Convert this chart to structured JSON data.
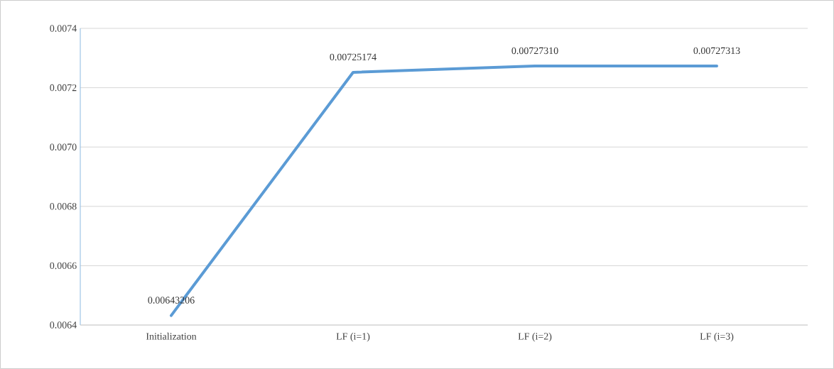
{
  "chart_data": {
    "type": "line",
    "categories": [
      "Initialization",
      "LF (i=1)",
      "LF (i=2)",
      "LF (i=3)"
    ],
    "values": [
      0.00643206,
      0.00725174,
      0.0072731,
      0.00727313
    ],
    "value_labels": [
      "0.00643206",
      "0.00725174",
      "0.00727310",
      "0.00727313"
    ],
    "color": "#5b9bd5",
    "ylim": [
      0.0064,
      0.0074
    ],
    "yticks": [
      0.0064,
      0.0066,
      0.0068,
      {
        "value": 0.007,
        "label": "0.0070"
      },
      0.0072,
      0.0074
    ],
    "grid": "y",
    "marker": "none",
    "line_style": "solid"
  }
}
